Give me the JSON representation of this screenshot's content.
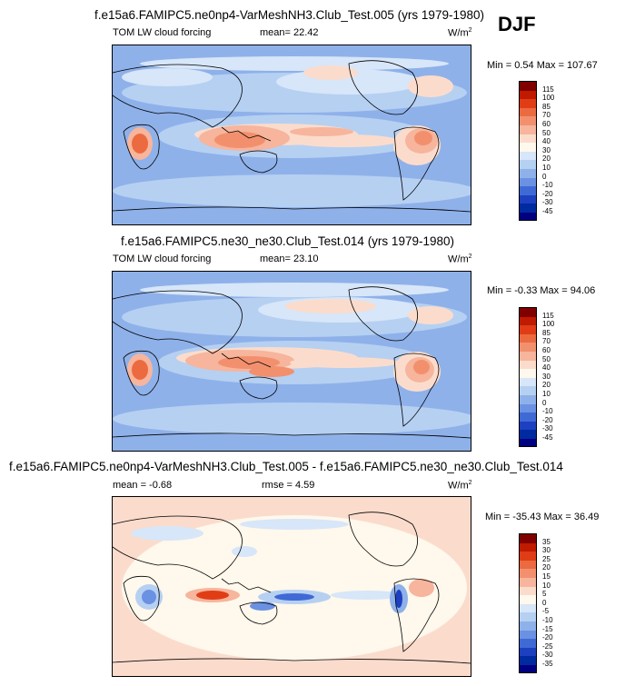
{
  "season": "DJF",
  "panels": [
    {
      "title": "f.e15a6.FAMIPC5.ne0np4-VarMeshNH3.Club_Test.005 (yrs 1979-1980)",
      "left_label": "TOM LW cloud forcing",
      "mid_label": "mean=  22.42",
      "units": "W/m",
      "units_sup": "2",
      "minmax": "Min =   0.54 Max = 107.67"
    },
    {
      "title": "f.e15a6.FAMIPC5.ne30_ne30.Club_Test.014 (yrs 1979-1980)",
      "left_label": "TOM LW cloud forcing",
      "mid_label": "mean=  23.10",
      "units": "W/m",
      "units_sup": "2",
      "minmax": "Min =  -0.33 Max =  94.06"
    },
    {
      "title": "f.e15a6.FAMIPC5.ne0np4-VarMeshNH3.Club_Test.005 - f.e15a6.FAMIPC5.ne30_ne30.Club_Test.014",
      "left_label": "mean =  -0.68",
      "mid_label": "rmse =   4.59",
      "units": "W/m",
      "units_sup": "2",
      "minmax": "Min = -35.43 Max =  36.49"
    }
  ],
  "chart_data": [
    {
      "type": "heatmap",
      "title": "TOM LW cloud forcing",
      "colorbar_levels": [
        "115",
        "100",
        "85",
        "70",
        "60",
        "50",
        "40",
        "30",
        "20",
        "10",
        "0",
        "-10",
        "-20",
        "-30",
        "-45"
      ],
      "colors": [
        "#800000",
        "#c01a00",
        "#e03d16",
        "#ec6a40",
        "#f2906e",
        "#f6b59c",
        "#fbdccc",
        "#fff8ec",
        "#d7e6f8",
        "#b6d0f2",
        "#8fb1ea",
        "#6b91e2",
        "#3f6ad5",
        "#1c40c0",
        "#002aa0",
        "#000080"
      ],
      "min": 0.54,
      "max": 107.67,
      "mean": 22.42
    },
    {
      "type": "heatmap",
      "title": "TOM LW cloud forcing",
      "colorbar_levels": [
        "115",
        "100",
        "85",
        "70",
        "60",
        "50",
        "40",
        "30",
        "20",
        "10",
        "0",
        "-10",
        "-20",
        "-30",
        "-45"
      ],
      "colors": [
        "#800000",
        "#c01a00",
        "#e03d16",
        "#ec6a40",
        "#f2906e",
        "#f6b59c",
        "#fbdccc",
        "#fff8ec",
        "#d7e6f8",
        "#b6d0f2",
        "#8fb1ea",
        "#6b91e2",
        "#3f6ad5",
        "#1c40c0",
        "#002aa0",
        "#000080"
      ],
      "min": -0.33,
      "max": 94.06,
      "mean": 23.1
    },
    {
      "type": "heatmap",
      "title": "difference",
      "colorbar_levels": [
        "35",
        "30",
        "25",
        "20",
        "15",
        "10",
        "5",
        "0",
        "-5",
        "-10",
        "-15",
        "-20",
        "-25",
        "-30",
        "-35"
      ],
      "colors": [
        "#800000",
        "#c01a00",
        "#e03d16",
        "#ec6a40",
        "#f2906e",
        "#f6b59c",
        "#fbdccc",
        "#fff8ec",
        "#d7e6f8",
        "#b6d0f2",
        "#8fb1ea",
        "#6b91e2",
        "#3f6ad5",
        "#1c40c0",
        "#002aa0",
        "#000080"
      ],
      "min": -35.43,
      "max": 36.49,
      "mean": -0.68,
      "rmse": 4.59
    }
  ]
}
